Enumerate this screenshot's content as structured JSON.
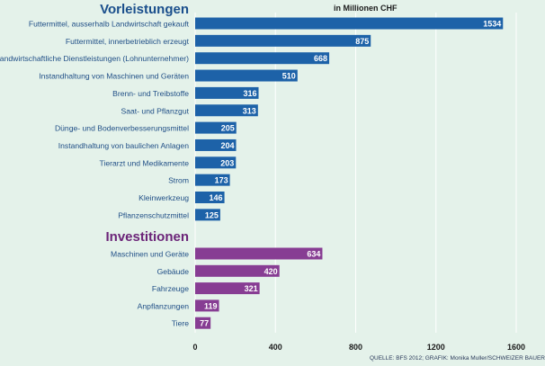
{
  "chart_data": {
    "type": "bar",
    "orientation": "horizontal",
    "unit_label": "in Millionen CHF",
    "source": "QUELLE: BFS 2012; GRAFIK: Monika Muller/SCHWEIZER BAUER",
    "xlim": [
      0,
      1600
    ],
    "x_ticks": [
      "0",
      "400",
      "800",
      "1200",
      "1600"
    ],
    "x_tick_values": [
      0,
      400,
      800,
      1200,
      1600
    ],
    "grid": true,
    "colors": {
      "background": "#e4f2ea",
      "vorleistungen_bar": "#1d62a8",
      "investitionen_bar": "#873d93",
      "vorleistungen_title": "#1a4f8c",
      "investitionen_title": "#6b2478",
      "label_text": "#1f4e86",
      "grid": "#ffffff"
    },
    "groups": [
      {
        "title": "Vorleistungen",
        "categories": [
          "Futtermittel, ausserhalb Landwirtschaft gekauft",
          "Futtermittel, innerbetrieblich erzeugt",
          "Landwirtschaftliche Dienstleistungen (Lohnunternehmer)",
          "Instandhaltung von Maschinen und Geräten",
          "Brenn- und Treibstoffe",
          "Saat- und Pflanzgut",
          "Dünge- und Bodenverbesserungsmittel",
          "Instandhaltung von baulichen Anlagen",
          "Tierarzt und Medikamente",
          "Strom",
          "Kleinwerkzeug",
          "Pflanzenschutzmittel"
        ],
        "values": [
          1534,
          875,
          668,
          510,
          316,
          313,
          205,
          204,
          203,
          173,
          146,
          125
        ]
      },
      {
        "title": "Investitionen",
        "categories": [
          "Maschinen und Geräte",
          "Gebäude",
          "Fahrzeuge",
          "Anpflanzungen",
          "Tiere"
        ],
        "values": [
          634,
          420,
          321,
          119,
          77
        ]
      }
    ]
  }
}
